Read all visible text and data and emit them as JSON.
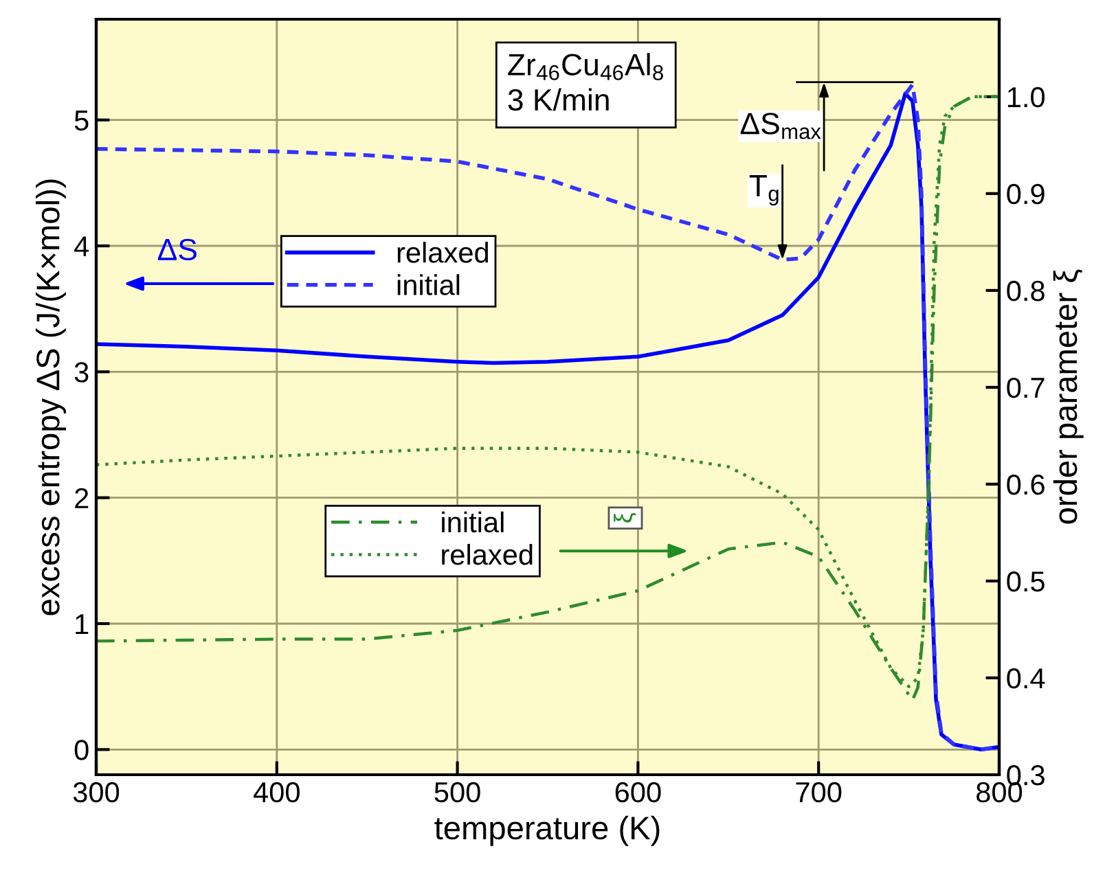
{
  "chart_data": {
    "type": "line",
    "xlabel": "temperature (K)",
    "ylabel": "excess entropy ΔS (J/(K×mol))",
    "y2label": "order parameter ξ",
    "xlim": [
      300,
      800
    ],
    "xticks": [
      300,
      400,
      500,
      600,
      700,
      800
    ],
    "ylim": [
      -0.2,
      5.8
    ],
    "yticks": [
      0,
      1,
      2,
      3,
      4,
      5
    ],
    "y2lim": [
      0.3,
      1.08
    ],
    "y2ticks": [
      {
        "value": 0.3,
        "label": "0.3"
      },
      {
        "value": 0.4,
        "label": "0.4"
      },
      {
        "value": 0.5,
        "label": "0.5"
      },
      {
        "value": 0.6,
        "label": "0.6"
      },
      {
        "value": 0.7,
        "label": "0.7"
      },
      {
        "value": 0.8,
        "label": "0.8"
      },
      {
        "value": 0.9,
        "label": "0.9"
      },
      {
        "value": 1.0,
        "label": "1.0"
      }
    ],
    "grid": true,
    "legend": "left",
    "series": [
      {
        "name": "relaxed",
        "color": "#0000ff",
        "line_style": "solid",
        "x": [
          300,
          350,
          400,
          450,
          500,
          520,
          550,
          600,
          650,
          680,
          700,
          720,
          740,
          748,
          752,
          755,
          757,
          759,
          762,
          765,
          768,
          775,
          790,
          800
        ],
        "values": [
          3.22,
          3.2,
          3.17,
          3.12,
          3.08,
          3.07,
          3.08,
          3.12,
          3.25,
          3.45,
          3.75,
          4.3,
          4.8,
          5.21,
          5.15,
          4.8,
          4.3,
          3.0,
          1.5,
          0.4,
          0.12,
          0.04,
          0.0,
          0.02
        ]
      },
      {
        "name": "initial",
        "color": "#3333ff",
        "line_style": "dashed",
        "x": [
          300,
          350,
          400,
          450,
          500,
          550,
          600,
          650,
          680,
          690,
          700,
          720,
          740,
          752,
          755,
          757,
          759,
          762,
          765,
          768,
          775,
          790,
          800
        ],
        "values": [
          4.77,
          4.76,
          4.75,
          4.72,
          4.67,
          4.53,
          4.29,
          4.09,
          3.89,
          3.9,
          4.05,
          4.6,
          5.05,
          5.28,
          5.0,
          4.4,
          3.1,
          1.6,
          0.45,
          0.13,
          0.04,
          0.0,
          0.02
        ]
      },
      {
        "name": "initial",
        "color": "#2e8b2e",
        "line_style": "dashdot",
        "axis": "y2",
        "x": [
          300,
          350,
          400,
          450,
          500,
          550,
          600,
          650,
          680,
          700,
          720,
          740,
          752,
          755,
          758,
          761,
          764,
          767,
          770,
          775,
          785,
          800
        ],
        "values": [
          0.438,
          0.439,
          0.44,
          0.44,
          0.449,
          0.468,
          0.49,
          0.533,
          0.54,
          0.525,
          0.47,
          0.41,
          0.377,
          0.39,
          0.45,
          0.6,
          0.8,
          0.93,
          0.97,
          0.99,
          1.0,
          1.0
        ]
      },
      {
        "name": "relaxed",
        "color": "#2e8b2e",
        "line_style": "dotted",
        "axis": "y2",
        "x": [
          300,
          350,
          400,
          450,
          500,
          550,
          600,
          650,
          680,
          700,
          720,
          740,
          750,
          755,
          758,
          761,
          764,
          767,
          770,
          775,
          785,
          800
        ],
        "values": [
          0.62,
          0.625,
          0.629,
          0.633,
          0.637,
          0.637,
          0.633,
          0.618,
          0.59,
          0.553,
          0.48,
          0.41,
          0.391,
          0.4,
          0.45,
          0.6,
          0.85,
          0.95,
          0.98,
          0.99,
          1.0,
          1.0
        ]
      }
    ],
    "annotations": [
      "Zr$_{46}$Cu$_{46}$Al$_{8}$\n3 K/min",
      "ΔS",
      "ξ",
      {
        "text": "ΔS$_{max}$",
        "x": 752,
        "y": 5.3
      },
      {
        "text": "T$_{g}$",
        "x": 680,
        "y": 3.89
      }
    ]
  }
}
